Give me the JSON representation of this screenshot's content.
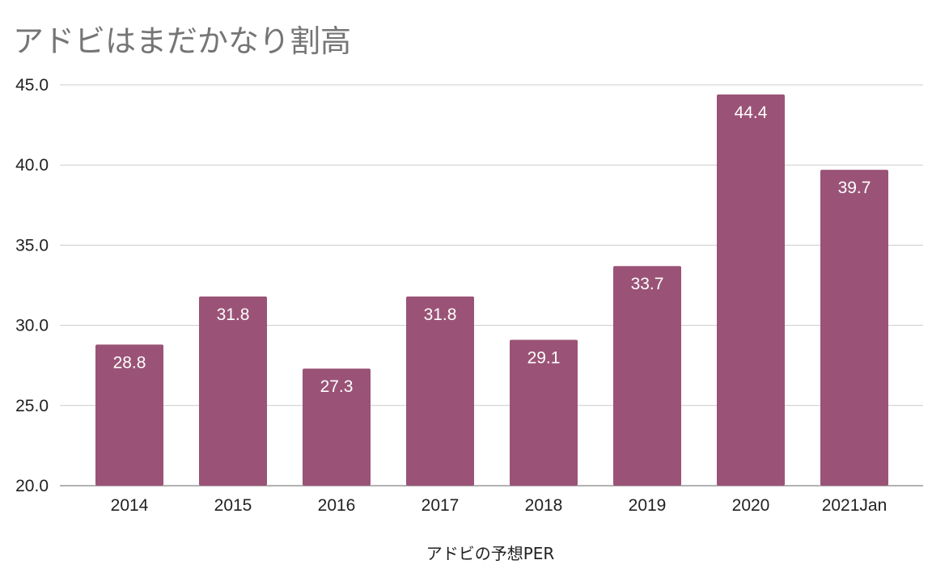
{
  "chart_data": {
    "type": "bar",
    "title": "アドビはまだかなり割高",
    "xlabel": "アドビの予想PER",
    "ylabel": "",
    "categories": [
      "2014",
      "2015",
      "2016",
      "2017",
      "2018",
      "2019",
      "2020",
      "2021Jan"
    ],
    "values": [
      28.8,
      31.8,
      27.3,
      31.8,
      29.1,
      33.7,
      44.4,
      39.7
    ],
    "value_labels": [
      "28.8",
      "31.8",
      "27.3",
      "31.8",
      "29.1",
      "33.7",
      "44.4",
      "39.7"
    ],
    "ylim": [
      20,
      45
    ],
    "yticks": [
      "20.0",
      "25.0",
      "30.0",
      "35.0",
      "40.0",
      "45.0"
    ],
    "ytick_values": [
      20,
      25,
      30,
      35,
      40,
      45
    ],
    "grid": true,
    "legend": "none",
    "bar_color": "#9a5376",
    "grid_color": "#cccccc"
  }
}
